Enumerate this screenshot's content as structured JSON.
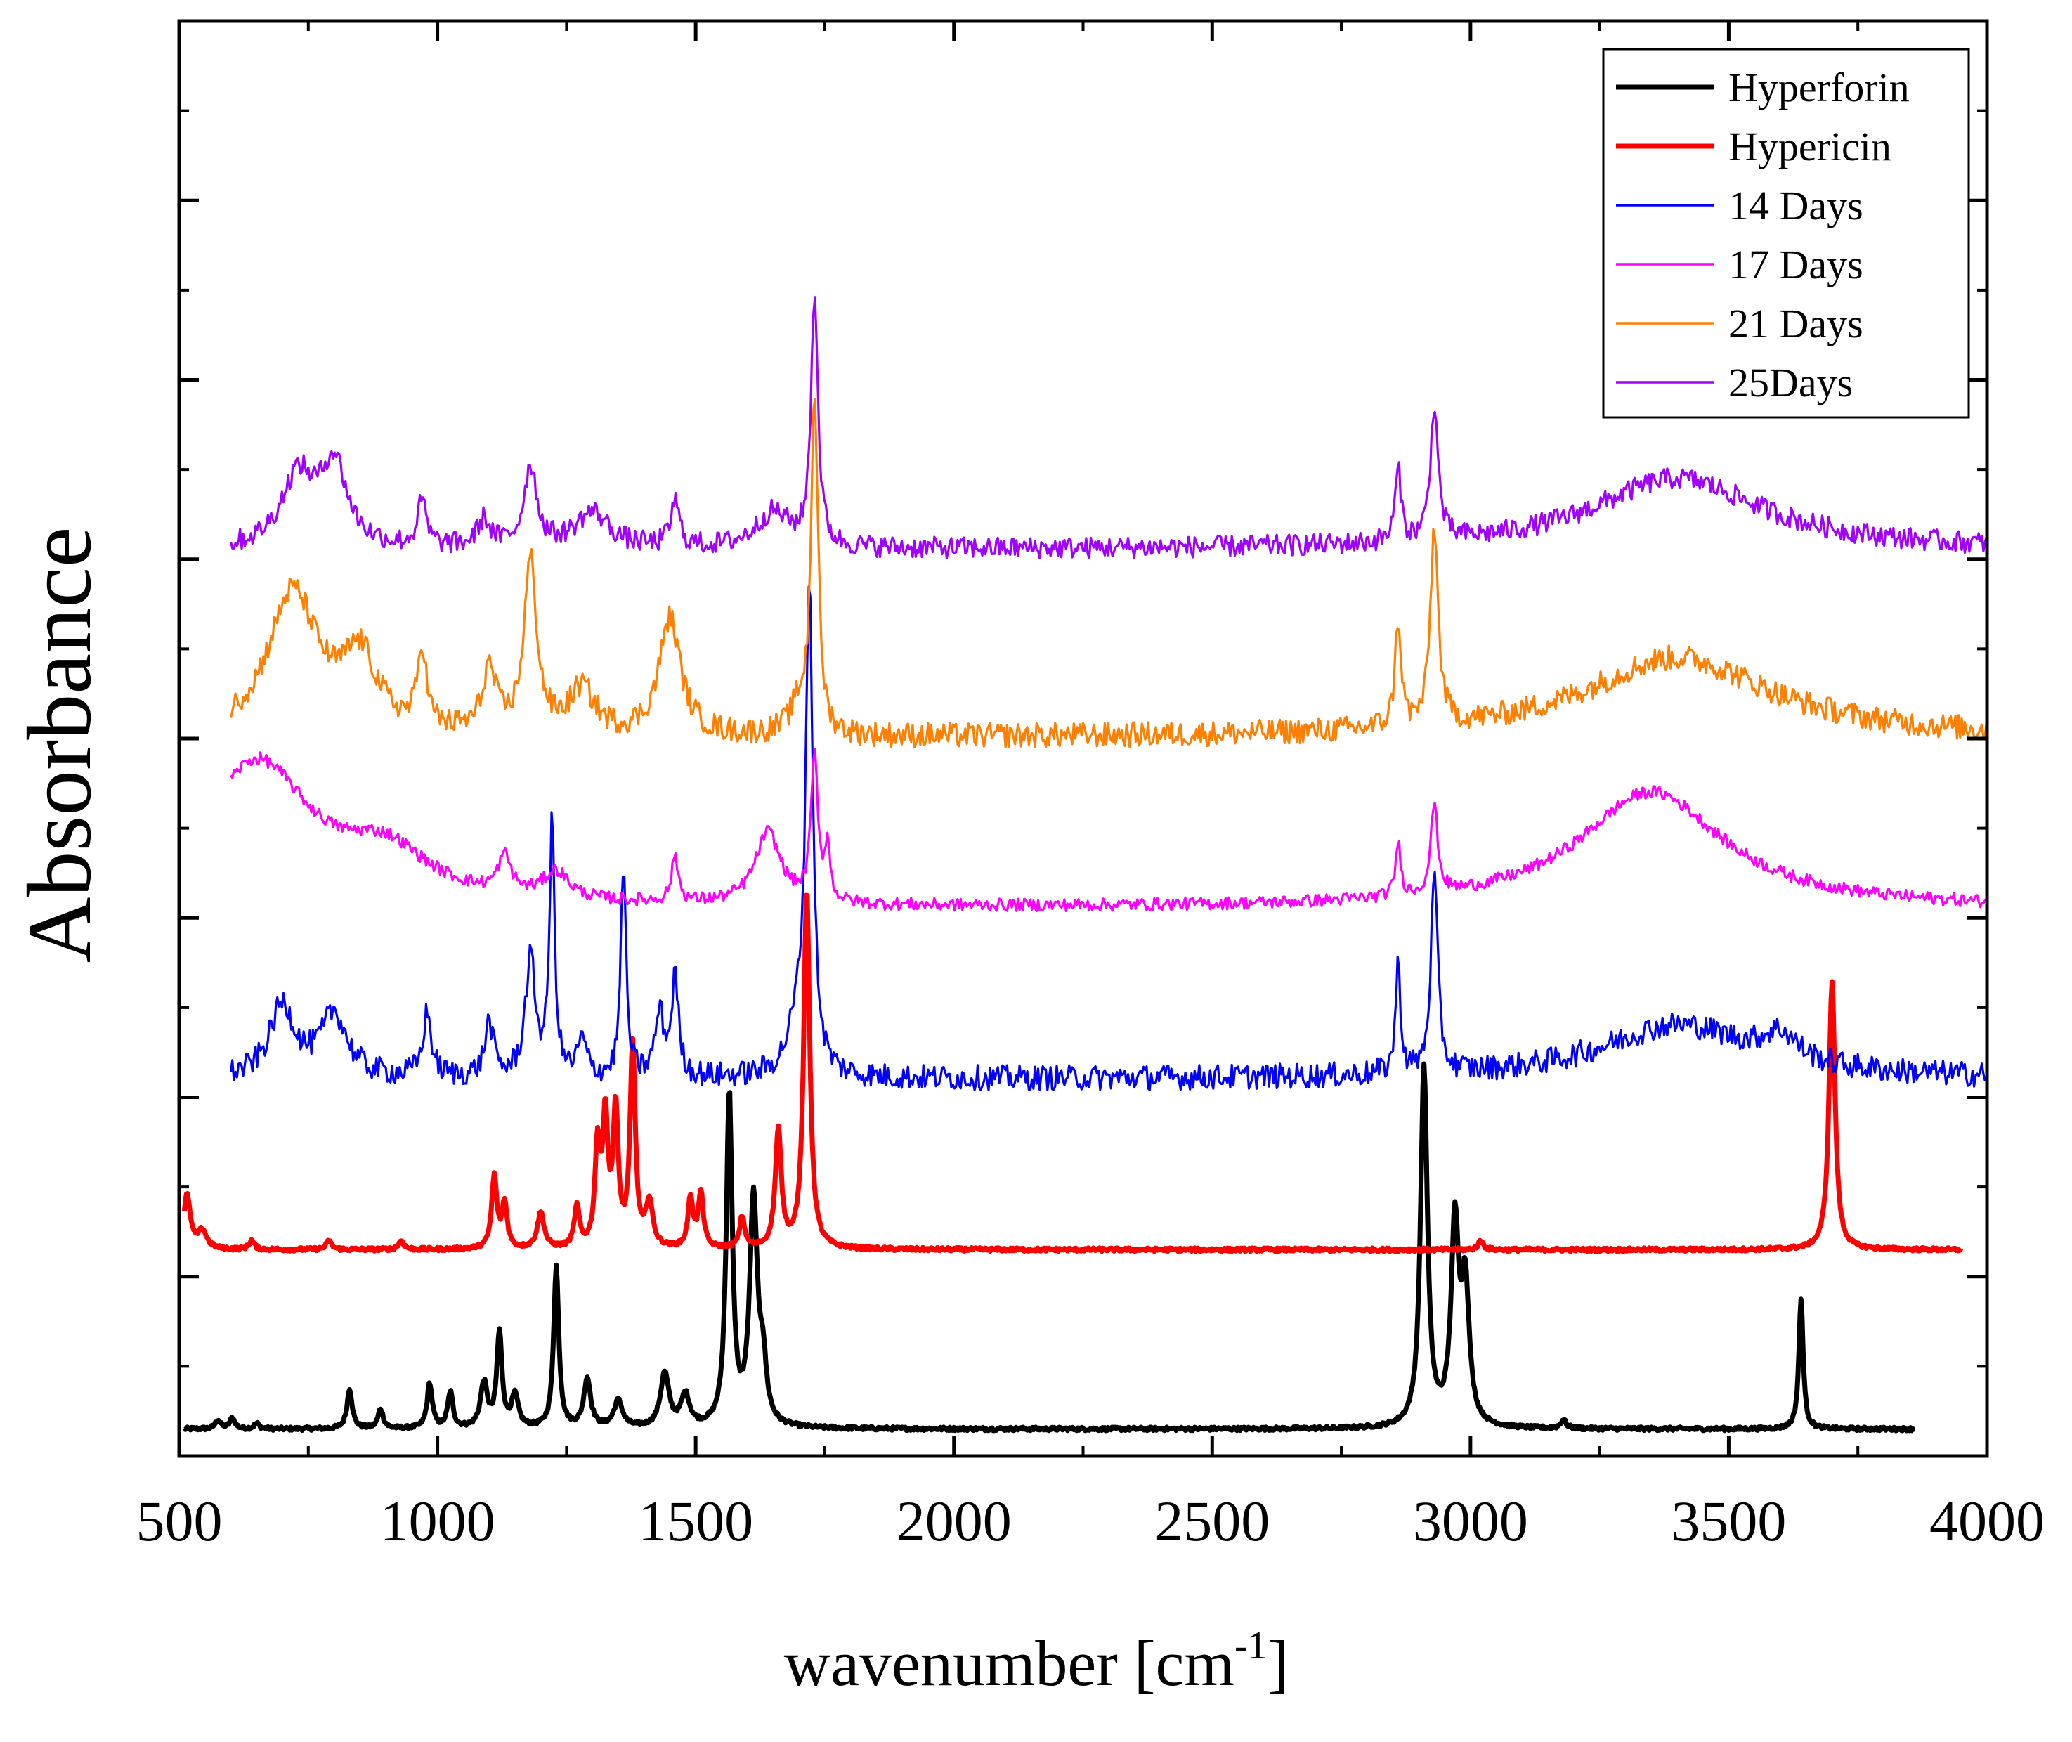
{
  "chart_data": {
    "type": "line",
    "title": "",
    "xlabel_main": "wavenumber [cm",
    "xlabel_sup": "-1",
    "xlabel_close": "]",
    "ylabel": "Absorbance",
    "xlim": [
      500,
      4000
    ],
    "ylim": [
      0,
      16
    ],
    "x_ticks": [
      500,
      1000,
      1500,
      2000,
      2500,
      3000,
      3500,
      4000
    ],
    "x_tick_labels": [
      "500",
      "1000",
      "1500",
      "2000",
      "2500",
      "3000",
      "3500",
      "4000"
    ],
    "y_tick_labels_shown": false,
    "legend_position": "top-right",
    "series": [
      {
        "name": "Hyperforin",
        "color": "#000000",
        "thick": true,
        "x_range": [
          510,
          3860
        ],
        "baseline": 0.3,
        "noise": 0.02,
        "peaks": [
          [
            575,
            0.1,
            6
          ],
          [
            603,
            0.12,
            6
          ],
          [
            650,
            0.06,
            6
          ],
          [
            830,
            0.45,
            6
          ],
          [
            890,
            0.22,
            6
          ],
          [
            985,
            0.5,
            6
          ],
          [
            1025,
            0.4,
            6
          ],
          [
            1090,
            0.5,
            8
          ],
          [
            1120,
            1.05,
            6
          ],
          [
            1150,
            0.35,
            8
          ],
          [
            1230,
            1.8,
            6
          ],
          [
            1290,
            0.55,
            8
          ],
          [
            1350,
            0.3,
            10
          ],
          [
            1440,
            0.6,
            10
          ],
          [
            1480,
            0.35,
            10
          ],
          [
            1565,
            3.7,
            7
          ],
          [
            1612,
            2.5,
            9
          ],
          [
            1630,
            0.6,
            8
          ],
          [
            2910,
            4.0,
            8
          ],
          [
            2970,
            2.2,
            9
          ],
          [
            2990,
            1.5,
            9
          ],
          [
            3180,
            0.1,
            6
          ],
          [
            3640,
            1.45,
            5
          ]
        ]
      },
      {
        "name": "Hypericin",
        "color": "#ff0000",
        "thick": true,
        "x_range": [
          510,
          3950
        ],
        "baseline": 2.3,
        "noise": 0.02,
        "peaks": [
          [
            515,
            0.6,
            8
          ],
          [
            545,
            0.2,
            10
          ],
          [
            640,
            0.1,
            6
          ],
          [
            790,
            0.1,
            6
          ],
          [
            930,
            0.1,
            6
          ],
          [
            1110,
            0.8,
            6
          ],
          [
            1130,
            0.5,
            6
          ],
          [
            1200,
            0.4,
            8
          ],
          [
            1270,
            0.45,
            6
          ],
          [
            1310,
            1.1,
            6
          ],
          [
            1325,
            1.4,
            6
          ],
          [
            1345,
            1.5,
            6
          ],
          [
            1378,
            2.25,
            6
          ],
          [
            1410,
            0.5,
            8
          ],
          [
            1490,
            0.55,
            6
          ],
          [
            1510,
            0.6,
            6
          ],
          [
            1590,
            0.35,
            6
          ],
          [
            1660,
            1.3,
            7
          ],
          [
            1715,
            4.0,
            7
          ],
          [
            3020,
            0.1,
            6
          ],
          [
            3700,
            3.0,
            7
          ]
        ]
      },
      {
        "name": "14 Days",
        "color": "#0000ff",
        "thick": false,
        "x_range": [
          600,
          4000
        ],
        "baseline": 4.2,
        "noise": 0.14,
        "peaks": [
          [
            700,
            0.8,
            30
          ],
          [
            800,
            0.7,
            30
          ],
          [
            980,
            0.7,
            10
          ],
          [
            1100,
            0.6,
            10
          ],
          [
            1180,
            1.3,
            12
          ],
          [
            1222,
            2.8,
            6
          ],
          [
            1280,
            0.4,
            10
          ],
          [
            1360,
            2.4,
            6
          ],
          [
            1430,
            0.7,
            10
          ],
          [
            1460,
            1.1,
            8
          ],
          [
            1720,
            5.3,
            8
          ],
          [
            1700,
            0.6,
            25
          ],
          [
            2860,
            1.2,
            6
          ],
          [
            2930,
            2.2,
            8
          ],
          [
            3400,
            0.6,
            180
          ],
          [
            3600,
            0.3,
            40
          ]
        ]
      },
      {
        "name": "17 Days",
        "color": "#ff00ff",
        "thick": false,
        "x_range": [
          600,
          4000
        ],
        "baseline": 6.1,
        "noise": 0.07,
        "peaks": [
          [
            650,
            1.6,
            130
          ],
          [
            900,
            0.5,
            100
          ],
          [
            1130,
            0.4,
            15
          ],
          [
            1230,
            0.3,
            30
          ],
          [
            1460,
            0.5,
            8
          ],
          [
            1640,
            0.8,
            30
          ],
          [
            1730,
            1.6,
            8
          ],
          [
            1755,
            0.6,
            6
          ],
          [
            2860,
            0.6,
            6
          ],
          [
            2930,
            1.0,
            8
          ],
          [
            3350,
            1.3,
            170
          ]
        ]
      },
      {
        "name": "21 Days",
        "color": "#ff8000",
        "thick": false,
        "x_range": [
          600,
          4000
        ],
        "baseline": 8.0,
        "noise": 0.14,
        "peaks": [
          [
            720,
            1.6,
            60
          ],
          [
            850,
            0.8,
            40
          ],
          [
            970,
            0.9,
            10
          ],
          [
            1100,
            0.7,
            15
          ],
          [
            1180,
            1.9,
            15
          ],
          [
            1280,
            0.5,
            30
          ],
          [
            1450,
            1.3,
            25
          ],
          [
            1730,
            3.8,
            8
          ],
          [
            1700,
            0.3,
            20
          ],
          [
            2860,
            1.2,
            7
          ],
          [
            2930,
            2.2,
            9
          ],
          [
            3400,
            0.9,
            220
          ]
        ]
      },
      {
        "name": "25Days",
        "color": "#a000ff",
        "thick": false,
        "x_range": [
          600,
          4000
        ],
        "baseline": 10.1,
        "noise": 0.12,
        "peaks": [
          [
            730,
            0.8,
            40
          ],
          [
            800,
            0.9,
            30
          ],
          [
            970,
            0.5,
            10
          ],
          [
            1090,
            0.3,
            15
          ],
          [
            1180,
            0.9,
            15
          ],
          [
            1300,
            0.4,
            40
          ],
          [
            1460,
            0.5,
            10
          ],
          [
            1650,
            0.4,
            40
          ],
          [
            1730,
            2.8,
            8
          ],
          [
            2860,
            0.8,
            7
          ],
          [
            2930,
            1.5,
            9
          ],
          [
            3400,
            0.8,
            200
          ]
        ]
      }
    ]
  }
}
